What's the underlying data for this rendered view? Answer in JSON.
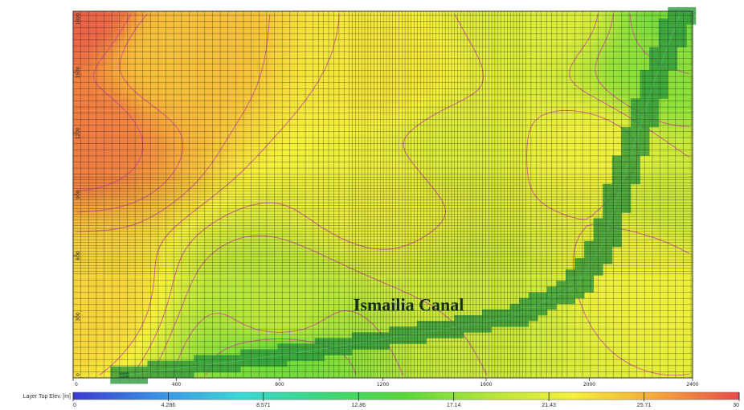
{
  "chart_data": {
    "type": "heatmap",
    "title": "",
    "xlabel": "",
    "ylabel": "",
    "xlim": [
      0,
      2400
    ],
    "ylim": [
      0,
      1800
    ],
    "x_ticks": [
      {
        "value": 0,
        "label": "0"
      },
      {
        "value": 400,
        "label": "400"
      },
      {
        "value": 800,
        "label": "800"
      },
      {
        "value": 1200,
        "label": "1200"
      },
      {
        "value": 1600,
        "label": "1600"
      },
      {
        "value": 2000,
        "label": "2000"
      },
      {
        "value": 2400,
        "label": "2400"
      }
    ],
    "y_ticks": [
      {
        "value": 0,
        "label": "0"
      },
      {
        "value": 300,
        "label": "300"
      },
      {
        "value": 600,
        "label": "600"
      },
      {
        "value": 900,
        "label": "900"
      },
      {
        "value": 1200,
        "label": "1200"
      },
      {
        "value": 1500,
        "label": "1500"
      },
      {
        "value": 1800,
        "label": "1800"
      }
    ],
    "annotation": "Ismailia Canal",
    "colorbar": {
      "label": "Layer Top Elev. [m]",
      "min": 0,
      "max": 30,
      "ticks": [
        "0",
        "4.286",
        "8.571",
        "12.86",
        "17.14",
        "21.43",
        "25.71",
        "30"
      ],
      "colors": [
        "#3a3ad0",
        "#3a8ee6",
        "#3ad8d8",
        "#3ad87a",
        "#5ad83a",
        "#b6e63a",
        "#f5f03a",
        "#f5a83a",
        "#e84a4a"
      ]
    },
    "elevation_field": [
      {
        "x": 0,
        "y": 1800,
        "value": 29
      },
      {
        "x": 0,
        "y": 1200,
        "value": 28
      },
      {
        "x": 400,
        "y": 1600,
        "value": 25
      },
      {
        "x": 1200,
        "y": 1500,
        "value": 23
      },
      {
        "x": 1200,
        "y": 900,
        "value": 22
      },
      {
        "x": 0,
        "y": 400,
        "value": 24
      },
      {
        "x": 800,
        "y": 300,
        "value": 19
      },
      {
        "x": 800,
        "y": 100,
        "value": 16
      },
      {
        "x": 1600,
        "y": 400,
        "value": 20
      },
      {
        "x": 2200,
        "y": 500,
        "value": 22
      },
      {
        "x": 2300,
        "y": 1500,
        "value": 17
      },
      {
        "x": 2400,
        "y": 1800,
        "value": 16
      },
      {
        "x": 2000,
        "y": 1100,
        "value": 22
      },
      {
        "x": 1800,
        "y": 1800,
        "value": 21
      },
      {
        "x": 2400,
        "y": 900,
        "value": 20
      },
      {
        "x": 1500,
        "y": 1100,
        "value": 21
      }
    ],
    "canal_path": [
      {
        "x": 180,
        "y": 10,
        "value": 15
      },
      {
        "x": 800,
        "y": 110,
        "value": 15
      },
      {
        "x": 1300,
        "y": 210,
        "value": 16
      },
      {
        "x": 1700,
        "y": 300,
        "value": 16
      },
      {
        "x": 1950,
        "y": 450,
        "value": 16
      },
      {
        "x": 2050,
        "y": 650,
        "value": 16
      },
      {
        "x": 2150,
        "y": 1050,
        "value": 15
      },
      {
        "x": 2250,
        "y": 1450,
        "value": 15
      },
      {
        "x": 2350,
        "y": 1780,
        "value": 15
      }
    ],
    "grid": true
  }
}
